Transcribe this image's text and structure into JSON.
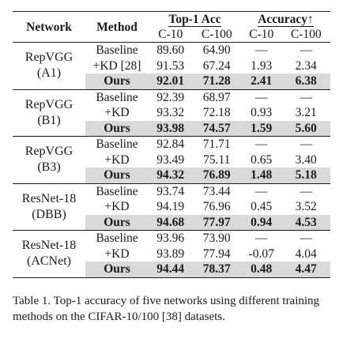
{
  "headers": {
    "network": "Network",
    "method": "Method",
    "top1": "Top-1 Acc",
    "accuracy": "Accuracy↑",
    "sub": [
      "C-10",
      "C-100",
      "C-10",
      "C-100"
    ]
  },
  "groups": [
    {
      "network_line1": "RepVGG",
      "network_line2": "(A1)",
      "rows": [
        {
          "method": "Baseline",
          "c10": "89.60",
          "c100": "64.90",
          "d10": "—",
          "d100": "—"
        },
        {
          "method": "+KD [28]",
          "c10": "91.53",
          "c100": "67.24",
          "d10": "1.93",
          "d100": "2.34"
        },
        {
          "method": "Ours",
          "c10": "92.01",
          "c100": "71.28",
          "d10": "2.41",
          "d100": "6.38"
        }
      ]
    },
    {
      "network_line1": "RepVGG",
      "network_line2": "(B1)",
      "rows": [
        {
          "method": "Baseline",
          "c10": "92.39",
          "c100": "68.97",
          "d10": "—",
          "d100": "—"
        },
        {
          "method": "+KD",
          "c10": "93.32",
          "c100": "72.18",
          "d10": "0.93",
          "d100": "3.21"
        },
        {
          "method": "Ours",
          "c10": "93.98",
          "c100": "74.57",
          "d10": "1.59",
          "d100": "5.60"
        }
      ]
    },
    {
      "network_line1": "RepVGG",
      "network_line2": "(B3)",
      "rows": [
        {
          "method": "Baseline",
          "c10": "92.84",
          "c100": "71.71",
          "d10": "—",
          "d100": "—"
        },
        {
          "method": "+KD",
          "c10": "93.49",
          "c100": "75.11",
          "d10": "0.65",
          "d100": "3.40"
        },
        {
          "method": "Ours",
          "c10": "94.32",
          "c100": "76.89",
          "d10": "1.48",
          "d100": "5.18"
        }
      ]
    },
    {
      "network_line1": "ResNet-18",
      "network_line2": "(DBB)",
      "rows": [
        {
          "method": "Baseline",
          "c10": "93.74",
          "c100": "73.44",
          "d10": "—",
          "d100": "—"
        },
        {
          "method": "+KD",
          "c10": "94.19",
          "c100": "76.96",
          "d10": "0.45",
          "d100": "3.52"
        },
        {
          "method": "Ours",
          "c10": "94.68",
          "c100": "77.97",
          "d10": "0.94",
          "d100": "4.53"
        }
      ]
    },
    {
      "network_line1": "ResNet-18",
      "network_line2": "(ACNet)",
      "rows": [
        {
          "method": "Baseline",
          "c10": "93.96",
          "c100": "73.90",
          "d10": "—",
          "d100": "—"
        },
        {
          "method": "+KD",
          "c10": "93.89",
          "c100": "77.94",
          "d10": "-0.07",
          "d100": "4.04"
        },
        {
          "method": "Ours",
          "c10": "94.44",
          "c100": "78.37",
          "d10": "0.48",
          "d100": "4.47"
        }
      ]
    }
  ],
  "caption": "Table 1. Top-1 accuracy of five networks using different training methods on the CIFAR-10/100 [38] datasets."
}
